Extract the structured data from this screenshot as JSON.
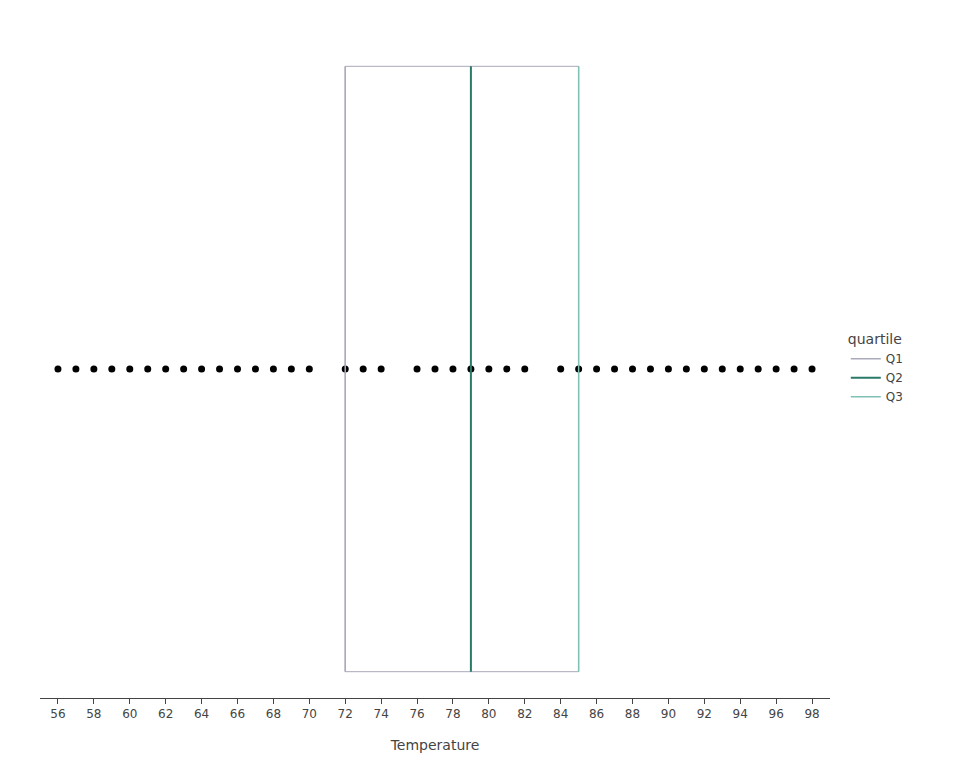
{
  "chart_data": {
    "type": "strip",
    "xlabel": "Temperature",
    "x": [
      56,
      57,
      58,
      59,
      60,
      61,
      62,
      63,
      64,
      65,
      66,
      67,
      68,
      69,
      70,
      72,
      73,
      74,
      76,
      77,
      78,
      79,
      80,
      81,
      82,
      84,
      85,
      86,
      87,
      88,
      89,
      90,
      91,
      92,
      93,
      94,
      95,
      96,
      97,
      98
    ],
    "color": "black",
    "marker": "circle",
    "xlim": [
      55,
      99
    ],
    "xticks": [
      56,
      58,
      60,
      62,
      64,
      66,
      68,
      70,
      72,
      74,
      76,
      78,
      80,
      82,
      84,
      86,
      88,
      90,
      92,
      94,
      96,
      98
    ],
    "grid": false,
    "tick_labels": "x",
    "legend": "right",
    "legend_title": "quartile",
    "quartiles": [
      {
        "name": "Q1",
        "value": 72,
        "color": "#aaaabc"
      },
      {
        "name": "Q2",
        "value": 79,
        "color": "#2a7a6a"
      },
      {
        "name": "Q3",
        "value": 85,
        "color": "#80c0b5"
      }
    ]
  }
}
